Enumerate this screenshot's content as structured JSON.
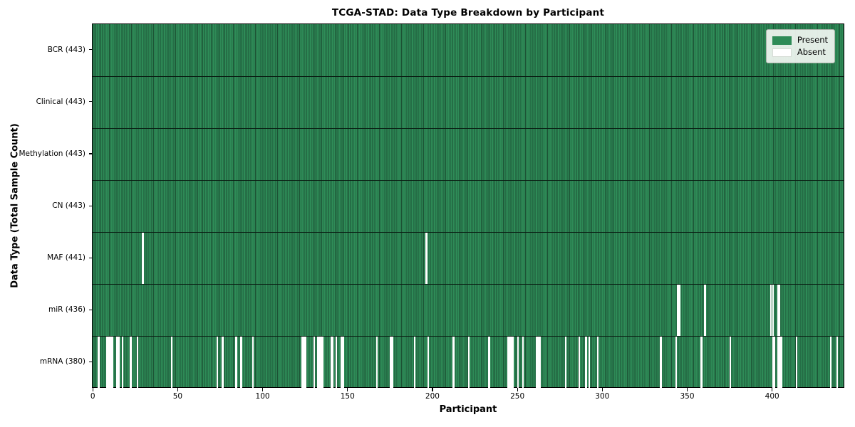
{
  "chart_data": {
    "type": "heatmap",
    "title": "TCGA-STAD: Data Type Breakdown by Participant",
    "xlabel": "Participant",
    "ylabel": "Data Type (Total Sample Count)",
    "n_participants": 443,
    "xlim": [
      -0.5,
      442.5
    ],
    "x_ticks": [
      0,
      50,
      100,
      150,
      200,
      250,
      300,
      350,
      400
    ],
    "grid": false,
    "colors": {
      "present": "#2e8b57",
      "present_edge": "#1c5134",
      "absent": "#ffffff",
      "separator": "#0a1f14",
      "legend_bg": "#eef2ee",
      "legend_border": "#a9b2a9"
    },
    "legend": {
      "position": "upper right",
      "items": [
        {
          "label": "Present",
          "color": "#2e8b57"
        },
        {
          "label": "Absent",
          "color": "#ffffff"
        }
      ]
    },
    "rows": [
      {
        "label": "BCR (443)",
        "data_type": "BCR",
        "present_count": 443,
        "absent_participants": []
      },
      {
        "label": "Clinical (443)",
        "data_type": "Clinical",
        "present_count": 443,
        "absent_participants": []
      },
      {
        "label": "Methylation (443)",
        "data_type": "Methylation",
        "present_count": 443,
        "absent_participants": []
      },
      {
        "label": "CN (443)",
        "data_type": "CN",
        "present_count": 443,
        "absent_participants": []
      },
      {
        "label": "MAF (441)",
        "data_type": "MAF",
        "present_count": 441,
        "absent_participants": [
          29,
          196
        ]
      },
      {
        "label": "miR (436)",
        "data_type": "miR",
        "present_count": 436,
        "absent_participants": [
          344,
          345,
          360,
          399,
          400,
          403,
          404
        ]
      },
      {
        "label": "mRNA (380)",
        "data_type": "mRNA",
        "present_count": 380,
        "absent_participants": [
          3,
          8,
          9,
          10,
          11,
          14,
          15,
          17,
          22,
          26,
          46,
          73,
          76,
          84,
          87,
          94,
          123,
          124,
          125,
          130,
          132,
          133,
          134,
          135,
          140,
          141,
          143,
          146,
          147,
          167,
          175,
          176,
          189,
          197,
          212,
          221,
          233,
          244,
          245,
          246,
          247,
          250,
          253,
          261,
          262,
          263,
          278,
          286,
          290,
          292,
          297,
          334,
          343,
          358,
          375,
          400,
          401,
          403,
          404,
          405,
          414,
          434,
          438
        ]
      }
    ]
  }
}
